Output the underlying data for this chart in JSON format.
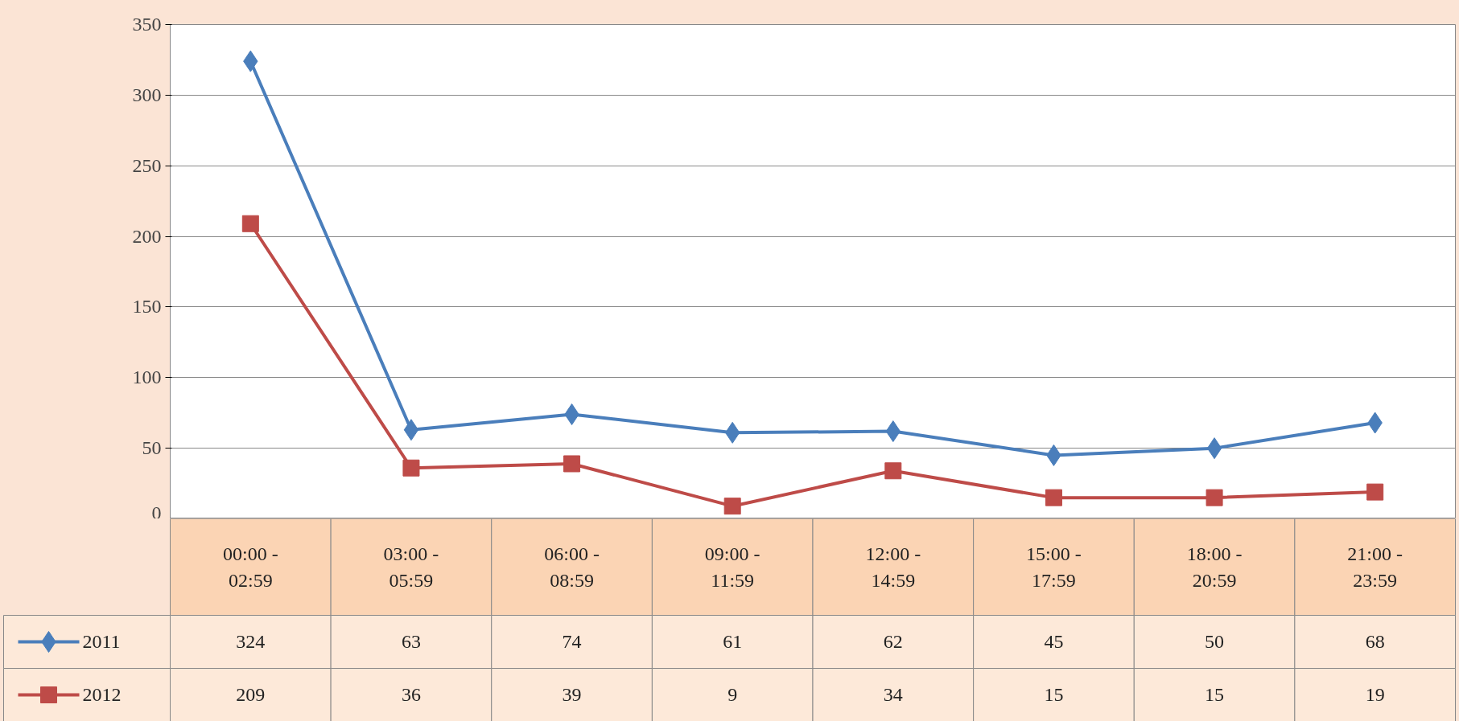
{
  "chart_data": {
    "type": "line",
    "categories": [
      "00:00 - 02:59",
      "03:00 - 05:59",
      "06:00 - 08:59",
      "09:00 - 11:59",
      "12:00 - 14:59",
      "15:00 - 17:59",
      "18:00 - 20:59",
      "21:00 - 23:59"
    ],
    "series": [
      {
        "name": "2011",
        "color": "#4a7ebb",
        "marker": "diamond",
        "values": [
          324,
          63,
          74,
          61,
          62,
          45,
          50,
          68
        ]
      },
      {
        "name": "2012",
        "color": "#be4b48",
        "marker": "square",
        "values": [
          209,
          36,
          39,
          9,
          34,
          15,
          15,
          19
        ]
      }
    ],
    "ylim": [
      0,
      350
    ],
    "yticks": [
      0,
      50,
      100,
      150,
      200,
      250,
      300,
      350
    ],
    "grid": "y",
    "legend": "bottom left",
    "data_labels": true,
    "line_style": "solid"
  }
}
